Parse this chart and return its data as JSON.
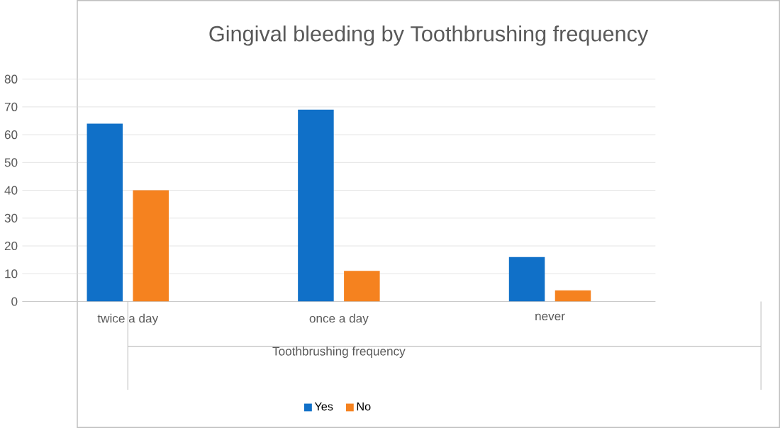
{
  "chart_data": {
    "type": "bar",
    "title": "Gingival bleeding by Toothbrushing frequency",
    "xlabel": "Toothbrushing frequency",
    "categories": [
      "twice a day",
      "once a day",
      "never"
    ],
    "series": [
      {
        "name": "Yes",
        "color": "#1070c8",
        "values": [
          64,
          69,
          16
        ]
      },
      {
        "name": "No",
        "color": "#f5821f",
        "values": [
          40,
          11,
          4
        ]
      }
    ],
    "ylim": [
      0,
      80
    ],
    "yticks": [
      0,
      10,
      20,
      30,
      40,
      50,
      60,
      70,
      80
    ],
    "grid": "y",
    "legend": "bottom"
  }
}
